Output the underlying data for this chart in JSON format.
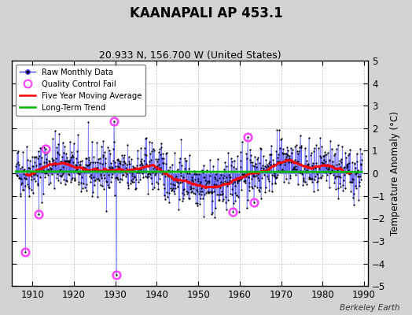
{
  "title": "KAANAPALI AP 453.1",
  "subtitle": "20.933 N, 156.700 W (United States)",
  "ylabel": "Temperature Anomaly (°C)",
  "watermark": "Berkeley Earth",
  "xlim": [
    1905,
    1991
  ],
  "ylim": [
    -5,
    5
  ],
  "xticks": [
    1910,
    1920,
    1930,
    1940,
    1950,
    1960,
    1970,
    1980,
    1990
  ],
  "yticks": [
    -5,
    -4,
    -3,
    -2,
    -1,
    0,
    1,
    2,
    3,
    4,
    5
  ],
  "bg_color": "#d3d3d3",
  "plot_bg_color": "#ffffff",
  "grid_color": "#b0b0b0",
  "raw_line_color": "#4444ff",
  "raw_marker_color": "#000000",
  "qc_fail_color": "#ff44ff",
  "moving_avg_color": "#ff0000",
  "trend_color": "#00bb00",
  "seed": 42,
  "qc_positions": [
    [
      1908.25,
      -3.5
    ],
    [
      1911.5,
      -1.8
    ],
    [
      1913.1,
      1.1
    ],
    [
      1929.6,
      2.3
    ],
    [
      1930.2,
      -4.5
    ],
    [
      1958.4,
      -1.7
    ],
    [
      1961.9,
      1.6
    ],
    [
      1963.4,
      -1.3
    ]
  ]
}
